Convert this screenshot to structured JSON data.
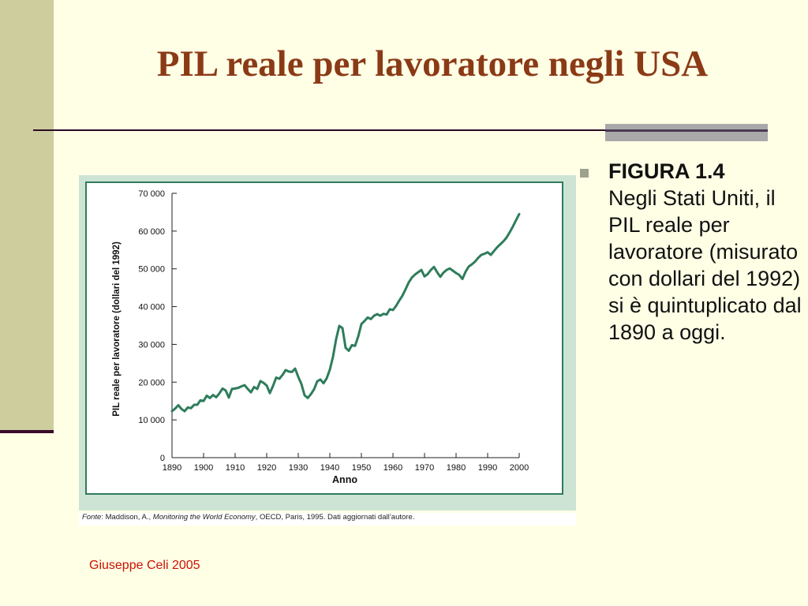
{
  "slide": {
    "title": "PIL reale per lavoratore negli USA",
    "footer": "Giuseppe Celi  2005"
  },
  "bullet": {
    "figure_label": "FIGURA 1.4",
    "text": "Negli Stati Uniti, il PIL reale per lavoratore (misurato con dollari del 1992) si è quintuplicato dal 1890 a oggi."
  },
  "source": {
    "prefix": "Fonte",
    "text_a": ": Maddison, A., ",
    "title": "Monitoring the World Economy",
    "text_b": ", OECD, Paris, 1995. Dati aggiornati dall’autore."
  },
  "colors": {
    "line": "#2e7d5b",
    "frame": "#2f7a5c",
    "panel": "#cde4d4",
    "title": "#8b3a16",
    "footer": "#cc1100"
  },
  "chart_data": {
    "type": "line",
    "xlabel": "Anno",
    "ylabel": "PIL reale per lavoratore (dollari del 1992)",
    "xlim": [
      1890,
      2000
    ],
    "ylim": [
      0,
      70000
    ],
    "x_ticks": [
      "1890",
      "1900",
      "1910",
      "1920",
      "1930",
      "1940",
      "1950",
      "1960",
      "1970",
      "1980",
      "1990",
      "2000"
    ],
    "y_ticks": [
      "0",
      "10 000",
      "20 000",
      "30 000",
      "40 000",
      "50 000",
      "60 000",
      "70 000"
    ],
    "grid": false,
    "series": [
      {
        "x": [
          1890,
          1891,
          1892,
          1893,
          1894,
          1895,
          1896,
          1897,
          1898,
          1899,
          1900,
          1901,
          1902,
          1903,
          1904,
          1905,
          1906,
          1907,
          1908,
          1909,
          1910,
          1911,
          1912,
          1913,
          1914,
          1915,
          1916,
          1917,
          1918,
          1919,
          1920,
          1921,
          1922,
          1923,
          1924,
          1925,
          1926,
          1927,
          1928,
          1929,
          1930,
          1931,
          1932,
          1933,
          1934,
          1935,
          1936,
          1937,
          1938,
          1939,
          1940,
          1941,
          1942,
          1943,
          1944,
          1945,
          1946,
          1947,
          1948,
          1949,
          1950,
          1951,
          1952,
          1953,
          1954,
          1955,
          1956,
          1957,
          1958,
          1959,
          1960,
          1961,
          1962,
          1963,
          1964,
          1965,
          1966,
          1967,
          1968,
          1969,
          1970,
          1971,
          1972,
          1973,
          1974,
          1975,
          1976,
          1977,
          1978,
          1979,
          1980,
          1981,
          1982,
          1983,
          1984,
          1985,
          1986,
          1987,
          1988,
          1989,
          1990,
          1991,
          1992,
          1993,
          1994,
          1995,
          1996,
          1997,
          1998,
          1999,
          2000
        ],
        "values": [
          12300,
          13000,
          13900,
          12900,
          12300,
          13300,
          13100,
          14000,
          14000,
          15200,
          15000,
          16400,
          15800,
          16600,
          16000,
          17000,
          18300,
          17800,
          15900,
          18200,
          18300,
          18500,
          18900,
          19200,
          18200,
          17300,
          18700,
          18200,
          20300,
          19800,
          19100,
          17100,
          19000,
          21200,
          20900,
          21900,
          23200,
          22800,
          22700,
          23600,
          21400,
          19500,
          16500,
          15800,
          16800,
          18100,
          20200,
          20700,
          19700,
          21000,
          23300,
          26700,
          31400,
          34900,
          34300,
          29100,
          28300,
          29800,
          29600,
          32100,
          35400,
          36200,
          37100,
          36700,
          37600,
          38000,
          37600,
          38100,
          37900,
          39300,
          39100,
          40200,
          41600,
          42900,
          44600,
          46400,
          47700,
          48500,
          49100,
          49700,
          48000,
          48600,
          49700,
          50500,
          49100,
          47900,
          49000,
          49700,
          50100,
          49500,
          48900,
          48400,
          47300,
          49200,
          50600,
          51200,
          51900,
          52900,
          53700,
          54000,
          54400,
          53700,
          54700,
          55700,
          56500,
          57300,
          58300,
          59700,
          61200,
          62900,
          64500
        ]
      }
    ]
  }
}
